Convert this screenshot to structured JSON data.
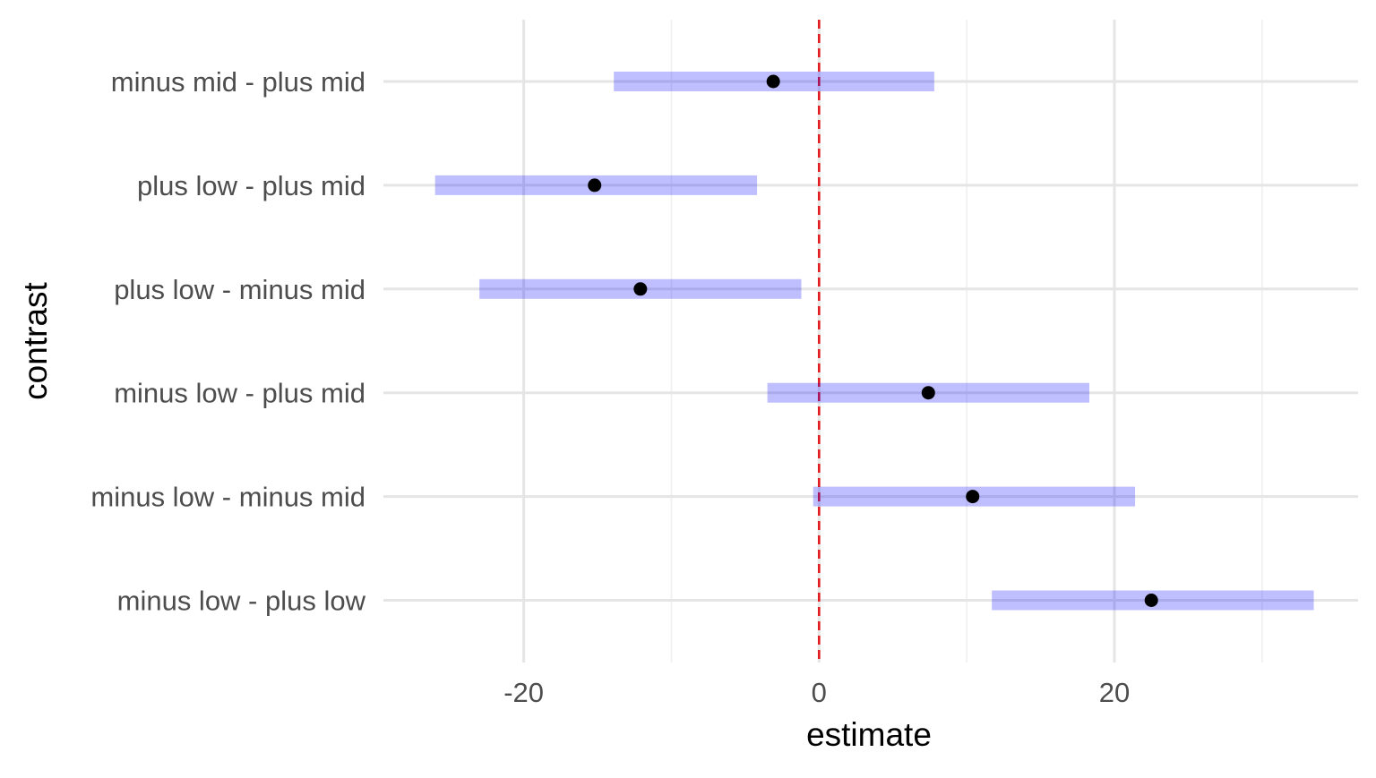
{
  "chart_data": {
    "type": "forest",
    "xlabel": "estimate",
    "ylabel": "contrast",
    "xlim": [
      -29.5,
      36.5
    ],
    "x_ticks": [
      -20,
      0,
      20
    ],
    "x_tick_labels": [
      "-20",
      "0",
      "20"
    ],
    "x_minor_ticks": [
      -10,
      10,
      30
    ],
    "reference_line": {
      "x": 0,
      "color": "#e41a1c",
      "style": "dashed"
    },
    "interval_color": "#0000ff",
    "interval_opacity": 0.25,
    "point_color": "#000000",
    "grid": true,
    "rows": [
      {
        "label": "minus mid - plus mid",
        "estimate": -3.1,
        "lower": -13.9,
        "upper": 7.8
      },
      {
        "label": "plus low - plus mid",
        "estimate": -15.2,
        "lower": -26.0,
        "upper": -4.2
      },
      {
        "label": "plus low - minus mid",
        "estimate": -12.1,
        "lower": -23.0,
        "upper": -1.2
      },
      {
        "label": "minus low - plus mid",
        "estimate": 7.4,
        "lower": -3.5,
        "upper": 18.3
      },
      {
        "label": "minus low - minus mid",
        "estimate": 10.4,
        "lower": -0.4,
        "upper": 21.4
      },
      {
        "label": "minus low - plus low",
        "estimate": 22.5,
        "lower": 11.7,
        "upper": 33.5
      }
    ]
  }
}
